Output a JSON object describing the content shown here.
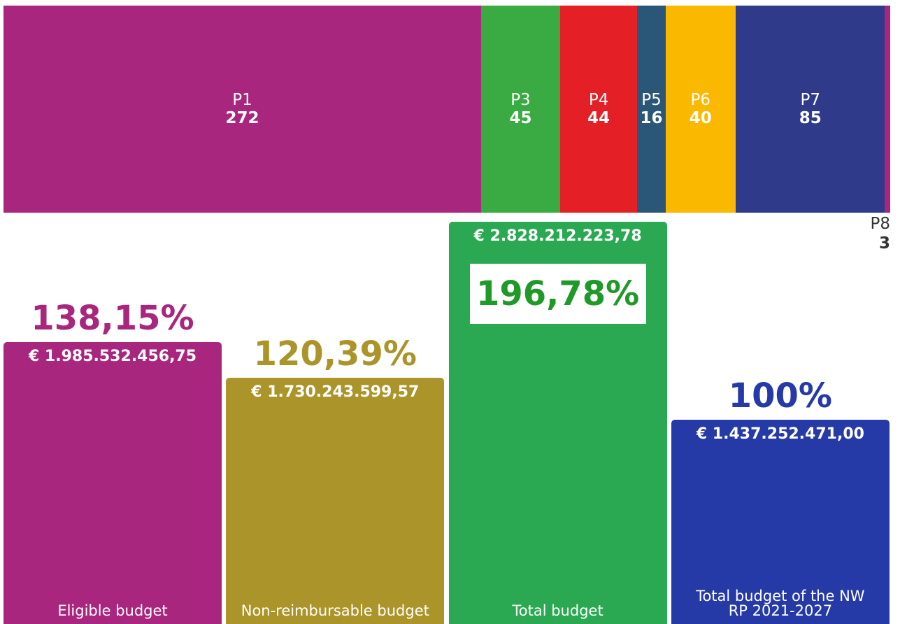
{
  "chart_data": [
    {
      "type": "strip",
      "categories": [
        "P1",
        "P3",
        "P4",
        "P5",
        "P6",
        "P7",
        "P8"
      ],
      "values": [
        272,
        45,
        44,
        16,
        40,
        85,
        3
      ],
      "colors": [
        "#a8267e",
        "#3aaa42",
        "#e41f26",
        "#2a5677",
        "#fbb800",
        "#2f3a8a",
        "#a8267e"
      ]
    },
    {
      "type": "bar",
      "categories": [
        "Eligible budget",
        "Non-reimbursable budget",
        "Total budget",
        "Total budget of the NW RP 2021-2027"
      ],
      "values": [
        138.15,
        120.39,
        196.78,
        100
      ],
      "value_labels": [
        "138,15%",
        "120,39%",
        "196,78%",
        "100%"
      ],
      "amount_labels": [
        "€ 1.985.532.456,75",
        "€ 1.730.243.599,57",
        "€ 2.828.212.223,78",
        "€ 1.437.252.471,00"
      ],
      "colors": [
        "#a8267e",
        "#ab952a",
        "#2aa852",
        "#263aa7"
      ],
      "label_colors": [
        "#a8267e",
        "#ab952a",
        "#1f9a28",
        "#263aa7"
      ]
    }
  ]
}
